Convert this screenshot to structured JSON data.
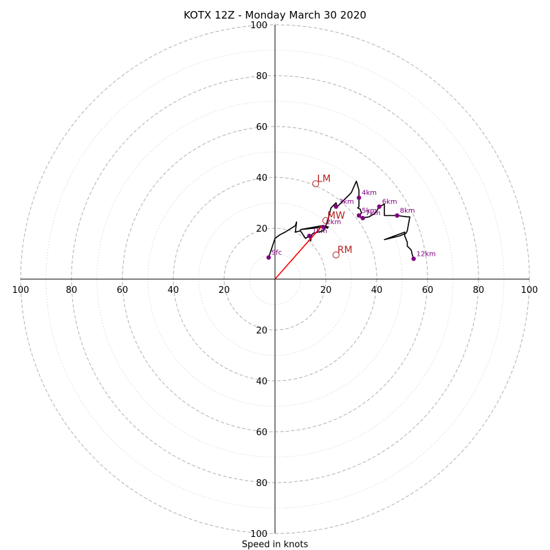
{
  "chart_data": {
    "type": "hodograph",
    "title": "KOTX 12Z - Monday March 30 2020",
    "xlabel": "Speed in knots",
    "range": 100,
    "major_rings": [
      20,
      40,
      60,
      80,
      100
    ],
    "minor_rings": [
      10,
      30,
      50,
      70,
      90
    ],
    "axis_ticks": [
      {
        "value": 100,
        "label": "100"
      },
      {
        "value": 80,
        "label": "80"
      },
      {
        "value": 60,
        "label": "60"
      },
      {
        "value": 40,
        "label": "40"
      },
      {
        "value": 20,
        "label": "20"
      }
    ],
    "colors": {
      "trace": "#000000",
      "height_marker": "#800080",
      "motion": "#b22222",
      "shear_vector": "#ff0000",
      "major_ring": "#b0b0b0",
      "minor_ring": "#c8c8c8"
    },
    "trace": [
      [
        -2.5,
        8.5
      ],
      [
        0,
        16
      ],
      [
        2,
        17.5
      ],
      [
        4,
        18.5
      ],
      [
        8,
        21
      ],
      [
        8.5,
        22.5
      ],
      [
        8,
        18.5
      ],
      [
        10,
        19
      ],
      [
        11,
        17.5
      ],
      [
        12,
        16
      ],
      [
        13.5,
        17
      ],
      [
        14,
        15
      ],
      [
        14.5,
        17.5
      ],
      [
        15,
        18
      ],
      [
        19,
        19
      ],
      [
        20,
        20.5
      ],
      [
        20.5,
        20
      ],
      [
        21,
        20.5
      ],
      [
        18.5,
        21
      ],
      [
        10,
        19.5
      ],
      [
        15,
        20
      ],
      [
        19.5,
        20.5
      ],
      [
        20,
        21
      ],
      [
        21,
        24
      ],
      [
        22,
        28
      ],
      [
        24,
        30
      ],
      [
        24.5,
        28.5
      ],
      [
        27,
        31
      ],
      [
        30,
        34
      ],
      [
        32,
        38.5
      ],
      [
        33,
        35
      ],
      [
        33,
        32
      ],
      [
        33,
        30
      ],
      [
        33,
        28.5
      ],
      [
        32.5,
        28
      ],
      [
        33.5,
        27.5
      ],
      [
        34,
        26
      ],
      [
        33,
        25
      ],
      [
        32.5,
        25.5
      ],
      [
        34,
        24
      ],
      [
        37,
        24.5
      ],
      [
        39.5,
        26
      ],
      [
        41,
        28.5
      ],
      [
        43,
        29.5
      ],
      [
        43,
        25
      ],
      [
        48,
        25
      ],
      [
        52,
        24.5
      ],
      [
        53,
        24.5
      ],
      [
        52,
        19
      ],
      [
        51.5,
        18
      ],
      [
        49,
        17
      ],
      [
        43,
        15.5
      ],
      [
        51,
        18.5
      ],
      [
        51,
        17
      ],
      [
        52,
        14.5
      ],
      [
        52,
        13
      ],
      [
        53.5,
        11.5
      ],
      [
        54,
        9.5
      ],
      [
        54.5,
        8
      ]
    ],
    "height_markers": [
      {
        "label": "Sfc",
        "x": -2.5,
        "y": 8.5
      },
      {
        "label": "1km",
        "x": 13.5,
        "y": 17
      },
      {
        "label": "2km",
        "x": 19,
        "y": 20.5
      },
      {
        "label": "3km",
        "x": 24,
        "y": 28.5
      },
      {
        "label": "4km",
        "x": 33,
        "y": 32
      },
      {
        "label": "5km",
        "x": 33,
        "y": 25
      },
      {
        "label": "7km",
        "x": 34.5,
        "y": 24
      },
      {
        "label": "6km",
        "x": 41,
        "y": 28.5
      },
      {
        "label": "8km",
        "x": 48,
        "y": 25
      },
      {
        "label": "12km",
        "x": 54.5,
        "y": 8
      }
    ],
    "storm_motions": [
      {
        "label": "LM",
        "x": 16,
        "y": 37.5
      },
      {
        "label": "MW",
        "x": 20,
        "y": 23
      },
      {
        "label": "RM",
        "x": 24,
        "y": 9.5
      }
    ],
    "shear_vector": {
      "from": [
        0,
        0
      ],
      "to": [
        18.5,
        21
      ]
    }
  }
}
